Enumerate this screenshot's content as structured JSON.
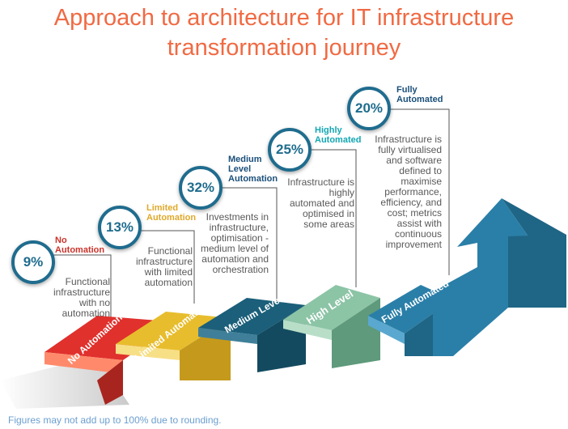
{
  "title": {
    "line1": "Approach to architecture for IT infrastructure",
    "line2": "transformation journey"
  },
  "stages": [
    {
      "percent": "9%",
      "level": "No Automation",
      "step_label": "No Automation",
      "description": "Functional infrastructure with no automation",
      "color": "#e0312d"
    },
    {
      "percent": "13%",
      "level": "Limited Automation",
      "step_label": "Limited Automation",
      "description": "Functional infrastructure with limited automation",
      "color": "#e8bd2d"
    },
    {
      "percent": "32%",
      "level": "Medium Level Automation",
      "step_label": "Medium Level",
      "description": "Investments in infrastructure, optimisation - medium level of automation and orchestration",
      "color": "#1b5f7a"
    },
    {
      "percent": "25%",
      "level": "Highly Automated",
      "step_label": "High Level",
      "description": "Infrastructure is highly automated and optimised in some areas",
      "color": "#8cc4a6"
    },
    {
      "percent": "20%",
      "level": "Fully Automated",
      "step_label": "Fully Automated",
      "description": "Infrastructure is fully virtualised and software defined to maximise performance, efficiency, and cost; metrics assist with continuous improvement",
      "color": "#2a7fa8"
    }
  ],
  "level_label_colors": [
    "#c9332b",
    "#e0a92a",
    "#1a4f7a",
    "#13a7b3",
    "#1a4f7a"
  ],
  "footnote": "Figures may not add up to 100% due to rounding."
}
